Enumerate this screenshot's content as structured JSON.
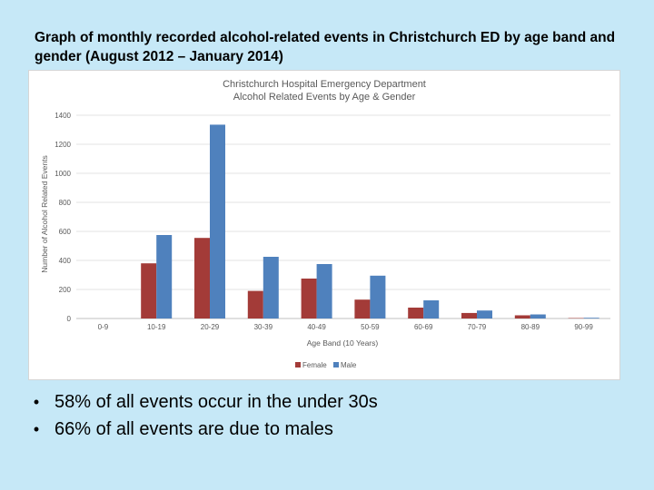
{
  "slide": {
    "title": "Graph of monthly recorded alcohol-related events in Christchurch ED by age band and gender (August 2012 – January 2014)",
    "bullets": [
      "58% of all events occur in the under 30s",
      "66% of all events are due to males"
    ]
  },
  "chart_data": {
    "type": "bar",
    "title": "Christchurch Hospital Emergency Department",
    "subtitle": "Alcohol Related Events by Age & Gender",
    "xlabel": "Age Band (10 Years)",
    "ylabel": "Number of Alcohol Related Events",
    "categories": [
      "0-9",
      "10-19",
      "20-29",
      "30-39",
      "40-49",
      "50-59",
      "60-69",
      "70-79",
      "80-89",
      "90-99"
    ],
    "series": [
      {
        "name": "Female",
        "color": "#a33b38",
        "values": [
          0,
          380,
          555,
          190,
          275,
          130,
          75,
          38,
          22,
          3
        ]
      },
      {
        "name": "Male",
        "color": "#4f81bd",
        "values": [
          0,
          575,
          1335,
          425,
          375,
          295,
          125,
          55,
          28,
          5
        ]
      }
    ],
    "ylim": [
      0,
      1400
    ],
    "yticks": [
      0,
      200,
      400,
      600,
      800,
      1000,
      1200,
      1400
    ],
    "grid": true,
    "legend": "bottom"
  }
}
